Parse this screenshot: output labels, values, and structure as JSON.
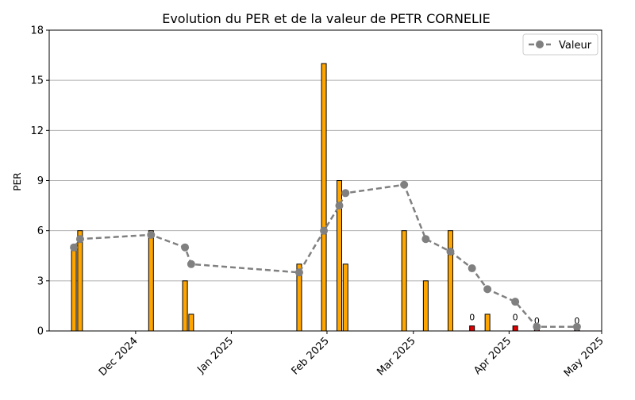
{
  "chart_data": {
    "type": "bar",
    "title": "Evolution du PER et de la valeur de PETR CORNELIE",
    "xlabel": "",
    "ylabel": "PER",
    "ylim": [
      0,
      18
    ],
    "yticks": [
      0,
      3,
      6,
      9,
      12,
      15,
      18
    ],
    "xlim": [
      "2024-11-03",
      "2025-05-01"
    ],
    "xticks": [
      {
        "date": "2024-12-01",
        "label": "Dec 2024"
      },
      {
        "date": "2025-01-01",
        "label": "Jan 2025"
      },
      {
        "date": "2025-02-01",
        "label": "Feb 2025"
      },
      {
        "date": "2025-03-01",
        "label": "Mar 2025"
      },
      {
        "date": "2025-04-01",
        "label": "Apr 2025"
      },
      {
        "date": "2025-05-01",
        "label": "May 2025"
      }
    ],
    "grid": "horizontal",
    "legend_position": "upper right",
    "colors": {
      "bar_positive": "#FFA500",
      "bar_zero": "#E00000",
      "bar_edge": "#000000",
      "line": "#808080",
      "grid": "#b0b0b0"
    },
    "bars": [
      {
        "date": "2024-11-11",
        "per": 5.0
      },
      {
        "date": "2024-11-13",
        "per": 6.0
      },
      {
        "date": "2024-12-06",
        "per": 6.0
      },
      {
        "date": "2024-12-17",
        "per": 3.0
      },
      {
        "date": "2024-12-19",
        "per": 1.0
      },
      {
        "date": "2025-01-23",
        "per": 4.0
      },
      {
        "date": "2025-01-31",
        "per": 16.0
      },
      {
        "date": "2025-02-05",
        "per": 9.0
      },
      {
        "date": "2025-02-07",
        "per": 4.0
      },
      {
        "date": "2025-02-26",
        "per": 6.0
      },
      {
        "date": "2025-03-05",
        "per": 3.0
      },
      {
        "date": "2025-03-13",
        "per": 6.0
      },
      {
        "date": "2025-03-20",
        "per": 0.3,
        "label": "0"
      },
      {
        "date": "2025-03-25",
        "per": 1.0
      },
      {
        "date": "2025-04-03",
        "per": 0.3,
        "label": "0"
      },
      {
        "date": "2025-04-10",
        "per": 0.1,
        "label": "0"
      },
      {
        "date": "2025-04-23",
        "per": 0.1,
        "label": "0"
      }
    ],
    "series": [
      {
        "name": "Valeur",
        "style": "dashed line with circle markers",
        "points": [
          {
            "date": "2024-11-11",
            "y": 5.0
          },
          {
            "date": "2024-11-13",
            "y": 5.5
          },
          {
            "date": "2024-12-06",
            "y": 5.75
          },
          {
            "date": "2024-12-17",
            "y": 5.0
          },
          {
            "date": "2024-12-19",
            "y": 4.0
          },
          {
            "date": "2025-01-23",
            "y": 3.5
          },
          {
            "date": "2025-01-31",
            "y": 6.0
          },
          {
            "date": "2025-02-05",
            "y": 7.5
          },
          {
            "date": "2025-02-07",
            "y": 8.25
          },
          {
            "date": "2025-02-26",
            "y": 8.75
          },
          {
            "date": "2025-03-05",
            "y": 5.5
          },
          {
            "date": "2025-03-13",
            "y": 4.75
          },
          {
            "date": "2025-03-20",
            "y": 3.75
          },
          {
            "date": "2025-03-25",
            "y": 2.5
          },
          {
            "date": "2025-04-03",
            "y": 1.75
          },
          {
            "date": "2025-04-10",
            "y": 0.25
          },
          {
            "date": "2025-04-23",
            "y": 0.25
          }
        ]
      }
    ]
  }
}
